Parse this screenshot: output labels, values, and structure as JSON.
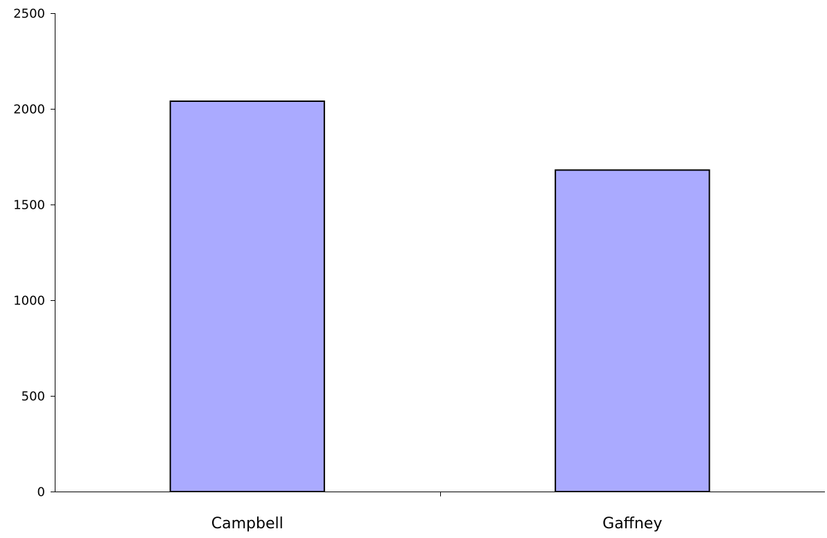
{
  "chart_data": {
    "type": "bar",
    "title": "",
    "xlabel": "",
    "ylabel": "",
    "categories": [
      "Campbell",
      "Gaffney"
    ],
    "values": [
      2040,
      1680
    ],
    "ylim": [
      0,
      2500
    ],
    "yticks": [
      "0",
      "500",
      "1000",
      "1500",
      "2000",
      "2500"
    ],
    "grid": false,
    "legend": "none",
    "bar_color": "#aaaaff",
    "bar_edge_color": "#000000"
  }
}
